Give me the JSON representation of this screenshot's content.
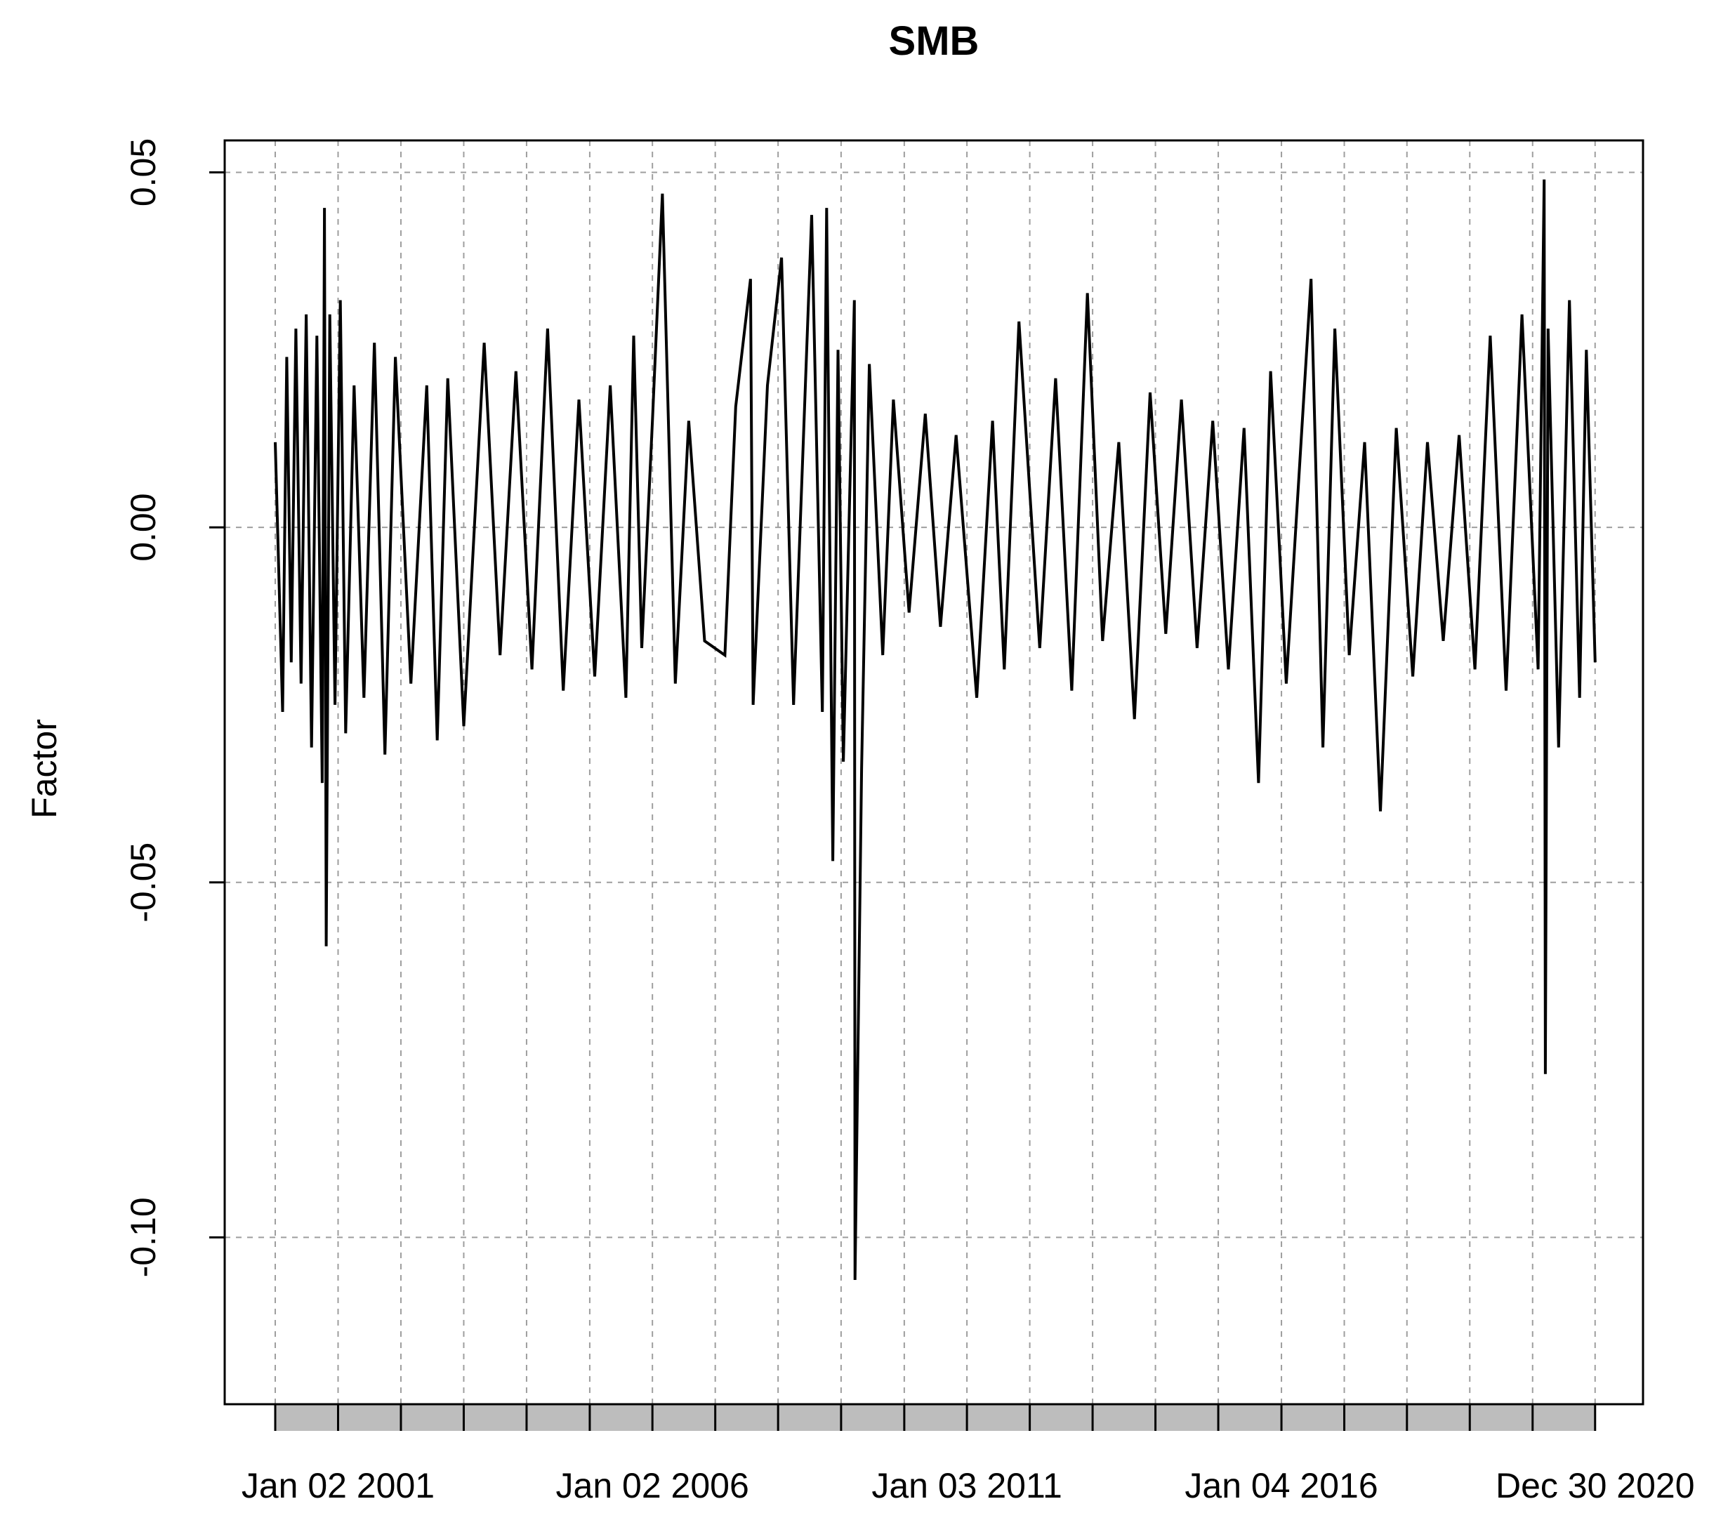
{
  "chart_data": {
    "type": "line",
    "title": "SMB",
    "xlabel": "",
    "ylabel": "Factor",
    "x_range": [
      "2000-01-03",
      "2020-12-31"
    ],
    "ylim": [
      -0.1235,
      0.0545
    ],
    "y_ticks": [
      {
        "value": 0.05,
        "label": "0.05"
      },
      {
        "value": 0.0,
        "label": "0.00"
      },
      {
        "value": -0.05,
        "label": "-0.05"
      },
      {
        "value": -0.1,
        "label": "-0.10"
      }
    ],
    "x_ticks": [
      {
        "date": "2001-01-02",
        "label": "Jan 02 2001"
      },
      {
        "date": "2006-01-02",
        "label": "Jan 02 2006"
      },
      {
        "date": "2011-01-03",
        "label": "Jan 03 2011"
      },
      {
        "date": "2016-01-04",
        "label": "Jan 04 2016"
      },
      {
        "date": "2020-12-30",
        "label": "Dec 30 2020"
      }
    ],
    "minor_x_dates": [
      "2000-01-03",
      "2001-01-02",
      "2002-01-02",
      "2003-01-02",
      "2004-01-02",
      "2005-01-03",
      "2006-01-02",
      "2007-01-02",
      "2008-01-02",
      "2009-01-02",
      "2010-01-04",
      "2011-01-03",
      "2012-01-03",
      "2013-01-02",
      "2014-01-02",
      "2015-01-02",
      "2016-01-04",
      "2017-01-03",
      "2018-01-02",
      "2019-01-02",
      "2020-01-02",
      "2020-12-30"
    ],
    "grid": true,
    "legend": "none",
    "series": [
      {
        "color": "#000000",
        "points": [
          {
            "date": "2000-01-03",
            "value": 0.012
          },
          {
            "date": "2000-02-15",
            "value": -0.026
          },
          {
            "date": "2000-03-10",
            "value": 0.024
          },
          {
            "date": "2000-04-05",
            "value": -0.019
          },
          {
            "date": "2000-05-02",
            "value": 0.028
          },
          {
            "date": "2000-06-01",
            "value": -0.022
          },
          {
            "date": "2000-07-01",
            "value": 0.03
          },
          {
            "date": "2000-08-01",
            "value": -0.031
          },
          {
            "date": "2000-09-01",
            "value": 0.027
          },
          {
            "date": "2000-10-02",
            "value": -0.036
          },
          {
            "date": "2000-10-15",
            "value": 0.045
          },
          {
            "date": "2000-10-25",
            "value": -0.059
          },
          {
            "date": "2000-11-15",
            "value": 0.03
          },
          {
            "date": "2000-12-15",
            "value": -0.025
          },
          {
            "date": "2001-01-15",
            "value": 0.032
          },
          {
            "date": "2001-02-15",
            "value": -0.029
          },
          {
            "date": "2001-04-05",
            "value": 0.02
          },
          {
            "date": "2001-06-01",
            "value": -0.024
          },
          {
            "date": "2001-08-01",
            "value": 0.026
          },
          {
            "date": "2001-10-01",
            "value": -0.032
          },
          {
            "date": "2001-12-01",
            "value": 0.024
          },
          {
            "date": "2002-03-01",
            "value": -0.022
          },
          {
            "date": "2002-06-01",
            "value": 0.02
          },
          {
            "date": "2002-08-01",
            "value": -0.03
          },
          {
            "date": "2002-10-01",
            "value": 0.021
          },
          {
            "date": "2003-01-02",
            "value": -0.028
          },
          {
            "date": "2003-05-01",
            "value": 0.026
          },
          {
            "date": "2003-08-01",
            "value": -0.018
          },
          {
            "date": "2003-11-01",
            "value": 0.022
          },
          {
            "date": "2004-02-02",
            "value": -0.02
          },
          {
            "date": "2004-05-03",
            "value": 0.028
          },
          {
            "date": "2004-08-02",
            "value": -0.023
          },
          {
            "date": "2004-11-01",
            "value": 0.018
          },
          {
            "date": "2005-02-01",
            "value": -0.021
          },
          {
            "date": "2005-05-02",
            "value": 0.02
          },
          {
            "date": "2005-08-01",
            "value": -0.024
          },
          {
            "date": "2005-09-15",
            "value": 0.027
          },
          {
            "date": "2005-11-01",
            "value": -0.017
          },
          {
            "date": "2006-01-02",
            "value": 0.015
          },
          {
            "date": "2006-03-01",
            "value": 0.047
          },
          {
            "date": "2006-05-15",
            "value": -0.022
          },
          {
            "date": "2006-08-01",
            "value": 0.015
          },
          {
            "date": "2006-11-01",
            "value": -0.016
          },
          {
            "date": "2007-02-27",
            "value": -0.018
          },
          {
            "date": "2007-05-01",
            "value": 0.017
          },
          {
            "date": "2007-07-26",
            "value": 0.035
          },
          {
            "date": "2007-08-10",
            "value": -0.025
          },
          {
            "date": "2007-11-01",
            "value": 0.02
          },
          {
            "date": "2008-01-22",
            "value": 0.038
          },
          {
            "date": "2008-04-01",
            "value": -0.025
          },
          {
            "date": "2008-07-15",
            "value": 0.044
          },
          {
            "date": "2008-09-15",
            "value": -0.026
          },
          {
            "date": "2008-10-10",
            "value": 0.045
          },
          {
            "date": "2008-11-15",
            "value": -0.047
          },
          {
            "date": "2008-12-15",
            "value": 0.025
          },
          {
            "date": "2009-01-15",
            "value": -0.033
          },
          {
            "date": "2009-03-20",
            "value": 0.032
          },
          {
            "date": "2009-03-24",
            "value": -0.106
          },
          {
            "date": "2009-05-01",
            "value": -0.034
          },
          {
            "date": "2009-06-15",
            "value": 0.023
          },
          {
            "date": "2009-09-01",
            "value": -0.018
          },
          {
            "date": "2009-11-02",
            "value": 0.018
          },
          {
            "date": "2010-02-01",
            "value": -0.012
          },
          {
            "date": "2010-05-06",
            "value": 0.016
          },
          {
            "date": "2010-08-02",
            "value": -0.014
          },
          {
            "date": "2010-11-01",
            "value": 0.013
          },
          {
            "date": "2011-03-01",
            "value": -0.024
          },
          {
            "date": "2011-06-01",
            "value": 0.015
          },
          {
            "date": "2011-08-08",
            "value": -0.02
          },
          {
            "date": "2011-11-01",
            "value": 0.029
          },
          {
            "date": "2012-03-01",
            "value": -0.017
          },
          {
            "date": "2012-06-01",
            "value": 0.021
          },
          {
            "date": "2012-09-03",
            "value": -0.023
          },
          {
            "date": "2012-12-03",
            "value": 0.033
          },
          {
            "date": "2013-03-01",
            "value": -0.016
          },
          {
            "date": "2013-06-03",
            "value": 0.012
          },
          {
            "date": "2013-09-02",
            "value": -0.027
          },
          {
            "date": "2013-12-02",
            "value": 0.019
          },
          {
            "date": "2014-03-03",
            "value": -0.015
          },
          {
            "date": "2014-06-02",
            "value": 0.018
          },
          {
            "date": "2014-09-01",
            "value": -0.017
          },
          {
            "date": "2014-12-01",
            "value": 0.015
          },
          {
            "date": "2015-03-02",
            "value": -0.02
          },
          {
            "date": "2015-06-01",
            "value": 0.014
          },
          {
            "date": "2015-08-24",
            "value": -0.036
          },
          {
            "date": "2015-11-02",
            "value": 0.022
          },
          {
            "date": "2016-02-01",
            "value": -0.022
          },
          {
            "date": "2016-06-24",
            "value": 0.035
          },
          {
            "date": "2016-09-01",
            "value": -0.031
          },
          {
            "date": "2016-11-09",
            "value": 0.028
          },
          {
            "date": "2017-02-01",
            "value": -0.018
          },
          {
            "date": "2017-05-01",
            "value": 0.012
          },
          {
            "date": "2017-08-01",
            "value": -0.04
          },
          {
            "date": "2017-11-01",
            "value": 0.014
          },
          {
            "date": "2018-02-05",
            "value": -0.021
          },
          {
            "date": "2018-05-01",
            "value": 0.012
          },
          {
            "date": "2018-08-01",
            "value": -0.016
          },
          {
            "date": "2018-11-01",
            "value": 0.013
          },
          {
            "date": "2019-02-01",
            "value": -0.02
          },
          {
            "date": "2019-05-01",
            "value": 0.027
          },
          {
            "date": "2019-08-01",
            "value": -0.023
          },
          {
            "date": "2019-11-01",
            "value": 0.03
          },
          {
            "date": "2020-02-03",
            "value": -0.02
          },
          {
            "date": "2020-03-09",
            "value": 0.049
          },
          {
            "date": "2020-03-16",
            "value": -0.077
          },
          {
            "date": "2020-04-01",
            "value": 0.028
          },
          {
            "date": "2020-06-01",
            "value": -0.031
          },
          {
            "date": "2020-08-03",
            "value": 0.032
          },
          {
            "date": "2020-10-01",
            "value": -0.024
          },
          {
            "date": "2020-11-09",
            "value": 0.025
          },
          {
            "date": "2020-12-30",
            "value": -0.019
          }
        ]
      }
    ]
  }
}
